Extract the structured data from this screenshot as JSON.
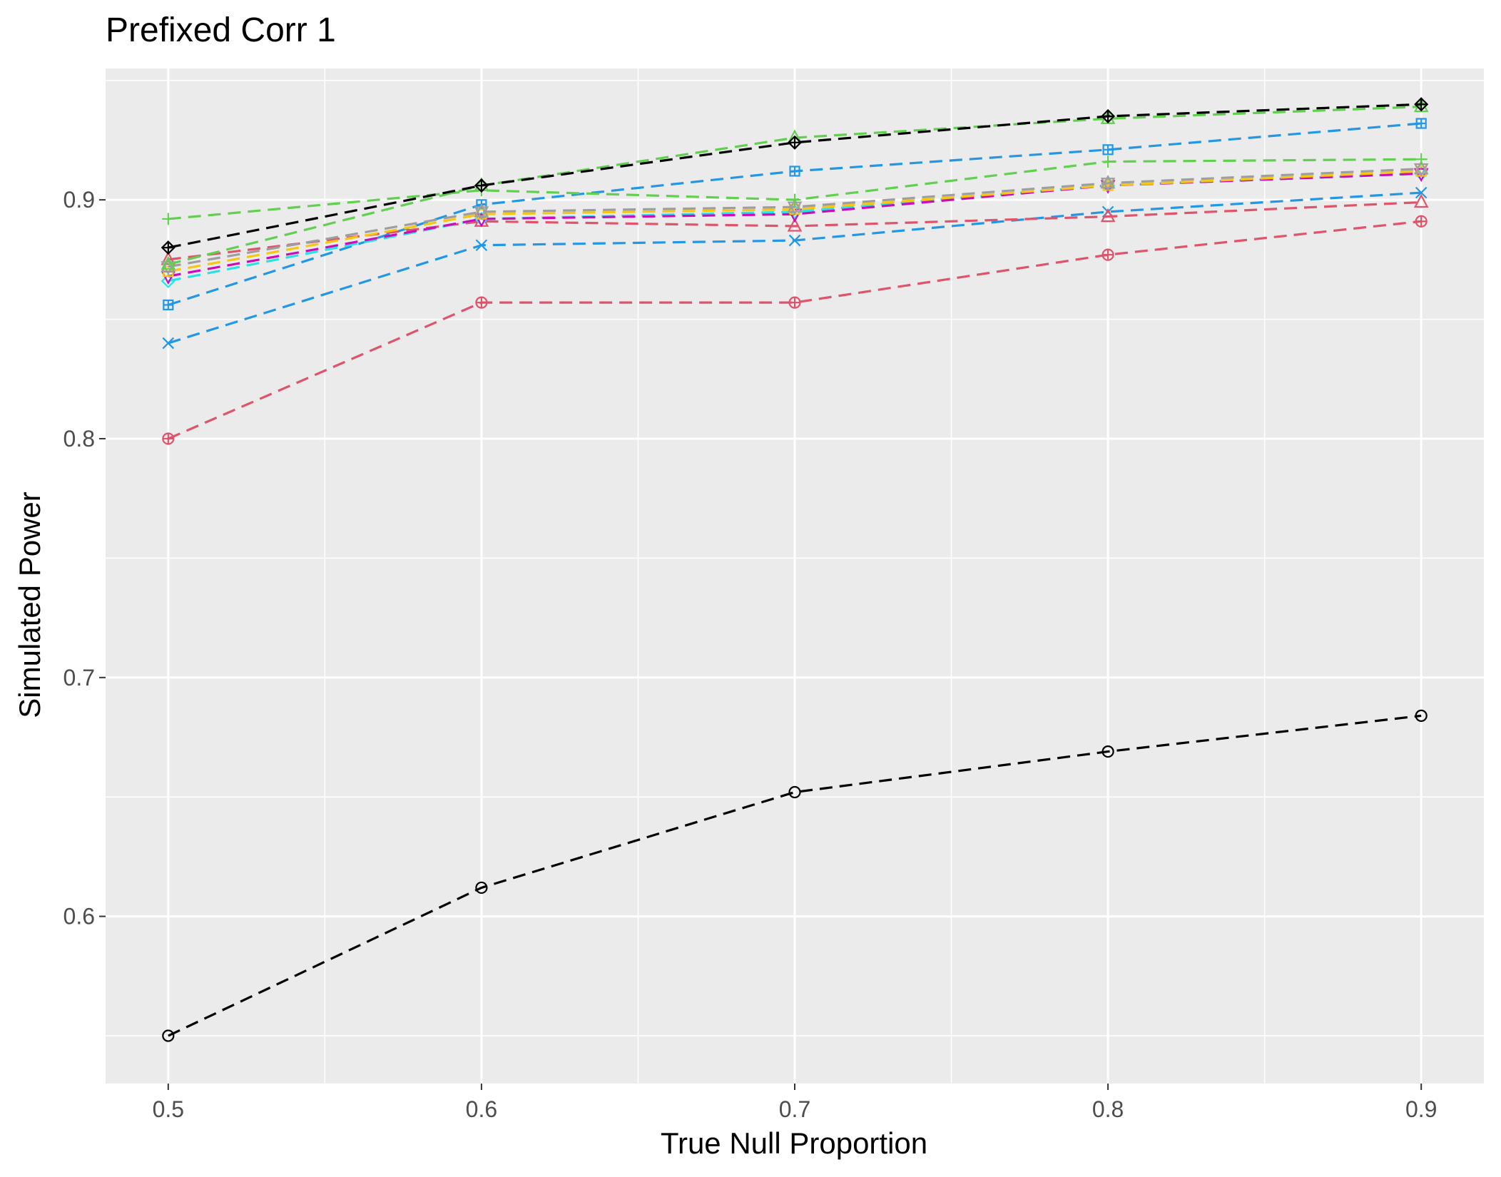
{
  "chart_data": {
    "type": "line",
    "title": "Prefixed Corr 1",
    "xlabel": "True Null Proportion",
    "ylabel": "Simulated Power",
    "x": [
      0.5,
      0.6,
      0.7,
      0.8,
      0.9
    ],
    "x_tick_labels": [
      "0.5",
      "0.6",
      "0.7",
      "0.8",
      "0.9"
    ],
    "y_ticks": [
      0.6,
      0.7,
      0.8,
      0.9
    ],
    "y_tick_labels": [
      "0.6",
      "0.7",
      "0.8",
      "0.9"
    ],
    "xlim": [
      0.48,
      0.92
    ],
    "ylim": [
      0.53,
      0.955
    ],
    "grid": true,
    "legend": "none",
    "series": [
      {
        "name": "black circle",
        "color": "#000000",
        "marker": "circle",
        "values": [
          0.55,
          0.612,
          0.652,
          0.669,
          0.684
        ]
      },
      {
        "name": "red circle-plus",
        "color": "#DF536B",
        "marker": "circle-plus",
        "values": [
          0.8,
          0.857,
          0.857,
          0.877,
          0.891
        ]
      },
      {
        "name": "blue x",
        "color": "#2297E6",
        "marker": "x",
        "values": [
          0.84,
          0.881,
          0.883,
          0.895,
          0.903
        ]
      },
      {
        "name": "blue square-plus",
        "color": "#2297E6",
        "marker": "square-plus",
        "values": [
          0.856,
          0.898,
          0.912,
          0.921,
          0.932
        ]
      },
      {
        "name": "red triangle",
        "color": "#DF536B",
        "marker": "triangle",
        "values": [
          0.875,
          0.891,
          0.889,
          0.893,
          0.899
        ]
      },
      {
        "name": "cyan diamond",
        "color": "#28E2E5",
        "marker": "diamond",
        "values": [
          0.866,
          0.892,
          0.895,
          0.906,
          0.911
        ]
      },
      {
        "name": "magenta triangle-down",
        "color": "#CD0BBC",
        "marker": "triangle-down",
        "values": [
          0.868,
          0.892,
          0.894,
          0.906,
          0.911
        ]
      },
      {
        "name": "orange square",
        "color": "#F5C710",
        "marker": "square",
        "values": [
          0.87,
          0.894,
          0.896,
          0.906,
          0.912
        ]
      },
      {
        "name": "gray star",
        "color": "#9E9E9E",
        "marker": "star",
        "values": [
          0.872,
          0.895,
          0.897,
          0.907,
          0.913
        ]
      },
      {
        "name": "green plus",
        "color": "#61D04F",
        "marker": "plus",
        "values": [
          0.892,
          0.904,
          0.9,
          0.916,
          0.917
        ]
      },
      {
        "name": "green triangle",
        "color": "#61D04F",
        "marker": "triangle",
        "values": [
          0.873,
          0.906,
          0.926,
          0.934,
          0.939
        ]
      },
      {
        "name": "black diamond-plus",
        "color": "#000000",
        "marker": "diamond-plus",
        "values": [
          0.88,
          0.906,
          0.924,
          0.935,
          0.94
        ]
      }
    ]
  }
}
